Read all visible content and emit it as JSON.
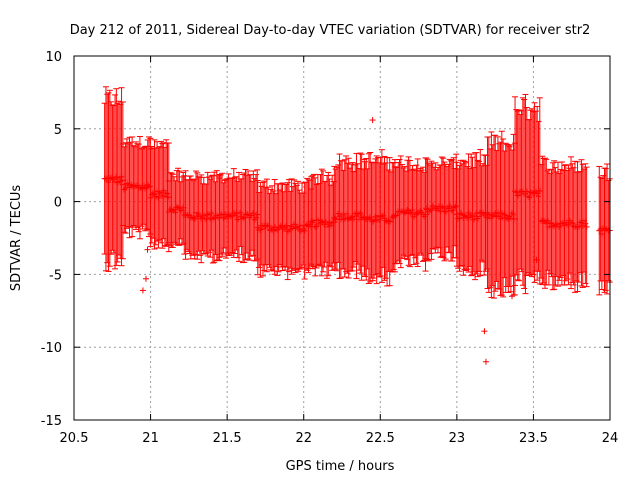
{
  "chart_data": {
    "type": "scatter",
    "title": "Day 212 of 2011, Sidereal Day-to-day VTEC variation (SDTVAR) for receiver str2",
    "xlabel": "GPS time / hours",
    "ylabel": "SDTVAR / TECUs",
    "xlim": [
      20.5,
      24
    ],
    "ylim": [
      -15,
      10
    ],
    "xticks": [
      20.5,
      21,
      21.5,
      22,
      22.5,
      23,
      23.5,
      24
    ],
    "xtick_labels": [
      "20.5",
      "21",
      "21.5",
      "22",
      "22.5",
      "23",
      "23.5",
      "24"
    ],
    "yticks": [
      -15,
      -10,
      -5,
      0,
      5,
      10
    ],
    "ytick_labels": [
      "-15",
      "-10",
      "-5",
      "0",
      "5",
      "10"
    ],
    "grid": true,
    "series_color": "#ff0000",
    "error_segments": [
      {
        "x0": 20.7,
        "x1": 20.82,
        "mid": 1.5,
        "half": 5.5
      },
      {
        "x0": 20.82,
        "x1": 21.0,
        "mid": 1.0,
        "half": 3.1
      },
      {
        "x0": 21.0,
        "x1": 21.12,
        "mid": 0.5,
        "half": 3.3
      },
      {
        "x0": 21.12,
        "x1": 21.22,
        "mid": -0.5,
        "half": 2.3
      },
      {
        "x0": 21.22,
        "x1": 21.45,
        "mid": -1.0,
        "half": 2.7
      },
      {
        "x0": 21.45,
        "x1": 21.7,
        "mid": -1.0,
        "half": 2.7
      },
      {
        "x0": 21.7,
        "x1": 22.05,
        "mid": -1.8,
        "half": 2.9
      },
      {
        "x0": 22.05,
        "x1": 22.2,
        "mid": -1.5,
        "half": 3.2
      },
      {
        "x0": 22.2,
        "x1": 22.4,
        "mid": -1.0,
        "half": 3.8
      },
      {
        "x0": 22.4,
        "x1": 22.6,
        "mid": -1.2,
        "half": 4.0
      },
      {
        "x0": 22.6,
        "x1": 22.8,
        "mid": -0.8,
        "half": 3.4
      },
      {
        "x0": 22.8,
        "x1": 23.0,
        "mid": -0.5,
        "half": 3.1
      },
      {
        "x0": 23.0,
        "x1": 23.2,
        "mid": -1.0,
        "half": 3.8
      },
      {
        "x0": 23.2,
        "x1": 23.38,
        "mid": -1.0,
        "half": 5.0
      },
      {
        "x0": 23.38,
        "x1": 23.55,
        "mid": 0.5,
        "half": 6.0
      },
      {
        "x0": 23.55,
        "x1": 23.85,
        "mid": -1.5,
        "half": 4.0
      },
      {
        "x0": 23.93,
        "x1": 24.0,
        "mid": -2.0,
        "half": 4.0
      }
    ],
    "outliers": [
      {
        "x": 20.95,
        "y": -6.1
      },
      {
        "x": 20.97,
        "y": -5.3
      },
      {
        "x": 20.98,
        "y": -3.3
      },
      {
        "x": 22.45,
        "y": 5.6
      },
      {
        "x": 23.18,
        "y": -8.9
      },
      {
        "x": 23.19,
        "y": -11.0
      },
      {
        "x": 23.36,
        "y": -6.5
      },
      {
        "x": 23.52,
        "y": -4.0
      }
    ]
  }
}
